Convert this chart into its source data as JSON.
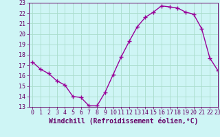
{
  "x": [
    0,
    1,
    2,
    3,
    4,
    5,
    6,
    7,
    8,
    9,
    10,
    11,
    12,
    13,
    14,
    15,
    16,
    17,
    18,
    19,
    20,
    21,
    22,
    23
  ],
  "y": [
    17.3,
    16.6,
    16.2,
    15.5,
    15.1,
    14.0,
    13.9,
    13.1,
    13.1,
    14.4,
    16.1,
    17.8,
    19.3,
    20.7,
    21.6,
    22.1,
    22.7,
    22.6,
    22.5,
    22.1,
    21.9,
    20.5,
    17.7,
    16.5
  ],
  "line_color": "#990099",
  "marker": "+",
  "marker_size": 4,
  "marker_linewidth": 1.0,
  "background_color": "#cef5f5",
  "grid_color": "#aaddcc",
  "xlabel": "Windchill (Refroidissement éolien,°C)",
  "xlabel_fontsize": 7,
  "ylim": [
    13,
    23
  ],
  "xlim": [
    -0.5,
    23
  ],
  "yticks": [
    13,
    14,
    15,
    16,
    17,
    18,
    19,
    20,
    21,
    22,
    23
  ],
  "xticks": [
    0,
    1,
    2,
    3,
    4,
    5,
    6,
    7,
    8,
    9,
    10,
    11,
    12,
    13,
    14,
    15,
    16,
    17,
    18,
    19,
    20,
    21,
    22,
    23
  ],
  "tick_fontsize": 6,
  "tick_color": "#660066",
  "axis_color": "#660066",
  "label_color": "#660066",
  "linewidth": 1.0
}
